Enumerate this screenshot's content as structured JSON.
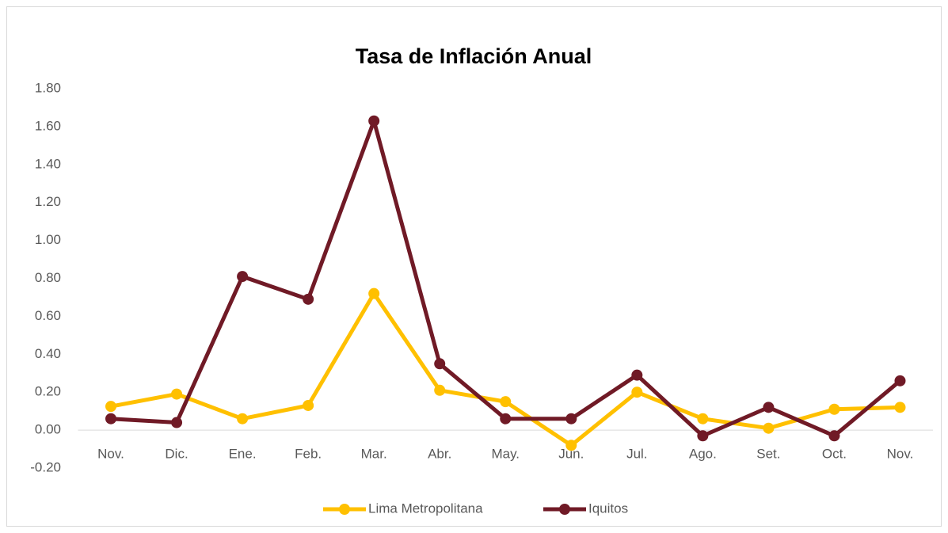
{
  "chart_data": {
    "type": "line",
    "title": "Tasa de Inflación Anual",
    "categories": [
      "Nov.",
      "Dic.",
      "Ene.",
      "Feb.",
      "Mar.",
      "Abr.",
      "May.",
      "Jun.",
      "Jul.",
      "Ago.",
      "Set.",
      "Oct.",
      "Nov."
    ],
    "series": [
      {
        "name": "Lima Metropolitana",
        "color": "#ffc000",
        "values": [
          0.125,
          0.19,
          0.06,
          0.13,
          0.72,
          0.21,
          0.15,
          -0.08,
          0.2,
          0.06,
          0.01,
          0.11,
          0.12
        ]
      },
      {
        "name": "Iquitos",
        "color": "#701a26",
        "values": [
          0.06,
          0.04,
          0.81,
          0.69,
          1.63,
          0.35,
          0.06,
          0.06,
          0.29,
          -0.03,
          0.12,
          -0.03,
          0.26
        ]
      }
    ],
    "ylim": [
      -0.2,
      1.8
    ],
    "yticks": [
      {
        "value": -0.2,
        "label": "-0.20"
      },
      {
        "value": 0,
        "label": "0.00"
      },
      {
        "value": 0.2,
        "label": "0.20"
      },
      {
        "value": 0.4,
        "label": "0.40"
      },
      {
        "value": 0.6,
        "label": "0.60"
      },
      {
        "value": 0.8,
        "label": "0.80"
      },
      {
        "value": 1.0,
        "label": "1.00"
      },
      {
        "value": 1.2,
        "label": "1.20"
      },
      {
        "value": 1.4,
        "label": "1.40"
      },
      {
        "value": 1.6,
        "label": "1.60"
      },
      {
        "value": 1.8,
        "label": "1.80"
      }
    ],
    "grid": false,
    "legend": "bottom"
  }
}
